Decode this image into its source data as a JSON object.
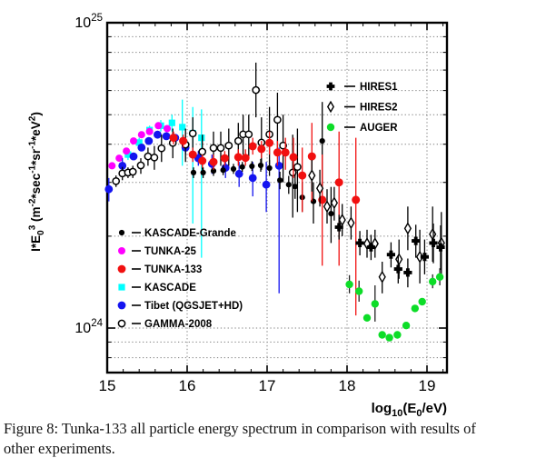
{
  "figure": {
    "caption_lines": [
      "Figure 8: Tunka-133 all particle energy spectrum in comparison with results of",
      "other experiments."
    ]
  },
  "chart_data": {
    "type": "scatter",
    "title": "",
    "xlabel_segments": [
      {
        "t": "log"
      },
      {
        "t": "10",
        "s": "sub"
      },
      {
        "t": "(E"
      },
      {
        "t": "0",
        "s": "sub"
      },
      {
        "t": "/eV)"
      }
    ],
    "ylabel_segments": [
      {
        "t": "I*E"
      },
      {
        "t": "0",
        "s": "sub"
      },
      {
        "t": "3",
        "s": "sup"
      },
      {
        "t": " (m"
      },
      {
        "t": "-2",
        "s": "sup"
      },
      {
        "t": "*sec"
      },
      {
        "t": "-1",
        "s": "sup"
      },
      {
        "t": "*sr"
      },
      {
        "t": "-1",
        "s": "sup"
      },
      {
        "t": "*eV"
      },
      {
        "t": "2",
        "s": "sup"
      },
      {
        "t": ")"
      }
    ],
    "xlim": [
      15,
      19.25
    ],
    "ylim_1e24": [
      0.715,
      10
    ],
    "x_major_ticks": [
      15,
      16,
      17,
      18,
      19
    ],
    "x_minor_step": 0.2,
    "x_gridlines": [
      16,
      17,
      18,
      19
    ],
    "y_gridlines_1e24": [
      0.8,
      0.9,
      1,
      2,
      3,
      4,
      5,
      6,
      7,
      8,
      9
    ],
    "y_tick_labels": [
      {
        "base": "10",
        "exp": "25",
        "value_1e24": 10
      },
      {
        "base": "10",
        "exp": "24",
        "value_1e24": 1
      }
    ],
    "grid": true,
    "units_note": "points are [log10(E0/eV), flux*1e-24, bar_low*1e-24, bar_high*1e-24] in I*E0^3 (m^-2 sec^-1 sr^-1 eV^2)",
    "series": [
      {
        "name": "KASCADE",
        "marker": "filled-square",
        "color": "#00ffff",
        "size": 3.6,
        "points": [
          [
            15.26,
            3.7,
            3.55,
            3.85
          ],
          [
            15.4,
            4.05,
            3.9,
            4.2
          ],
          [
            15.53,
            4.45,
            4.3,
            4.6
          ],
          [
            15.67,
            4.6,
            4.4,
            4.8
          ],
          [
            15.81,
            4.7,
            4.4,
            5.0
          ],
          [
            15.94,
            4.55,
            3.4,
            5.6
          ],
          [
            16.07,
            4.35,
            2.2,
            5.3
          ],
          [
            16.18,
            4.2,
            1.7,
            5.2
          ]
        ]
      },
      {
        "name": "TUNKA-25",
        "marker": "filled-circle",
        "color": "#ff00ff",
        "size": 4.0,
        "points": [
          [
            15.06,
            3.4,
            3.4,
            3.4
          ],
          [
            15.15,
            3.6,
            3.6,
            3.6
          ],
          [
            15.24,
            3.8,
            3.8,
            3.8
          ],
          [
            15.33,
            4.1,
            4.1,
            4.1
          ],
          [
            15.43,
            4.3,
            4.3,
            4.3
          ],
          [
            15.53,
            4.4,
            4.4,
            4.4
          ],
          [
            15.64,
            4.6,
            4.6,
            4.6
          ],
          [
            15.75,
            4.5,
            4.5,
            4.5
          ]
        ]
      },
      {
        "name": "Tibet (QGSJET+HD)",
        "marker": "filled-circle",
        "color": "#1414f0",
        "size": 4.4,
        "points": [
          [
            15.02,
            2.85,
            2.6,
            3.1
          ],
          [
            15.19,
            3.4,
            3.2,
            3.6
          ],
          [
            15.33,
            3.65,
            3.65,
            3.65
          ],
          [
            15.43,
            3.9,
            3.9,
            3.9
          ],
          [
            15.52,
            4.1,
            4.1,
            4.1
          ],
          [
            15.63,
            4.3,
            4.3,
            4.3
          ],
          [
            15.74,
            4.25,
            4.25,
            4.25
          ],
          [
            15.85,
            4.2,
            4.2,
            4.2
          ],
          [
            15.98,
            3.9,
            3.7,
            4.1
          ],
          [
            16.14,
            3.6,
            3.4,
            3.8
          ],
          [
            16.31,
            3.45,
            3.2,
            3.7
          ],
          [
            16.48,
            3.35,
            3.1,
            3.6
          ],
          [
            16.65,
            3.2,
            2.9,
            3.5
          ],
          [
            16.82,
            3.1,
            2.7,
            3.5
          ],
          [
            16.99,
            2.95,
            2.4,
            3.5
          ],
          [
            17.15,
            3.4,
            1.3,
            3.9
          ]
        ]
      },
      {
        "name": "KASCADE-Grande",
        "marker": "filled-circle",
        "color": "#000000",
        "size": 3.1,
        "points": [
          [
            16.08,
            3.23,
            3.1,
            3.36
          ],
          [
            16.2,
            3.23,
            3.1,
            3.36
          ],
          [
            16.33,
            3.27,
            3.15,
            3.4
          ],
          [
            16.45,
            3.29,
            3.17,
            3.42
          ],
          [
            16.58,
            3.32,
            3.2,
            3.45
          ],
          [
            16.69,
            3.37,
            3.25,
            3.5
          ],
          [
            16.81,
            3.39,
            3.27,
            3.52
          ],
          [
            16.92,
            3.41,
            3.25,
            3.58
          ],
          [
            17.03,
            3.34,
            3.15,
            3.55
          ],
          [
            17.16,
            3.05,
            2.85,
            3.25
          ],
          [
            17.27,
            2.95,
            2.75,
            3.15
          ],
          [
            17.35,
            2.91,
            2.65,
            3.2
          ],
          [
            17.44,
            2.68,
            2.4,
            3.0
          ],
          [
            17.58,
            2.6,
            2.2,
            3.0
          ],
          [
            17.69,
            4.1,
            2.9,
            5.5
          ],
          [
            17.8,
            2.37,
            1.9,
            2.9
          ]
        ]
      },
      {
        "name": "GAMMA-2008",
        "marker": "open-circle",
        "color": "#000000",
        "size": 3.6,
        "points": [
          [
            15.11,
            3.03,
            2.9,
            3.16
          ],
          [
            15.19,
            3.21,
            3.05,
            3.37
          ],
          [
            15.26,
            3.23,
            3.1,
            3.36
          ],
          [
            15.32,
            3.25,
            3.1,
            3.4
          ],
          [
            15.42,
            3.41,
            3.2,
            3.6
          ],
          [
            15.51,
            3.65,
            3.4,
            3.9
          ],
          [
            15.59,
            3.62,
            3.3,
            3.95
          ],
          [
            15.68,
            3.88,
            3.5,
            4.3
          ],
          [
            15.82,
            4.04,
            3.6,
            4.5
          ],
          [
            15.98,
            3.99,
            3.5,
            4.5
          ],
          [
            16.07,
            4.34,
            3.8,
            4.9
          ],
          [
            16.19,
            3.78,
            3.3,
            4.3
          ],
          [
            16.33,
            3.89,
            3.4,
            4.4
          ],
          [
            16.42,
            3.89,
            3.4,
            4.4
          ],
          [
            16.52,
            3.96,
            3.4,
            4.5
          ],
          [
            16.64,
            4.1,
            3.5,
            4.7
          ],
          [
            16.7,
            4.31,
            3.7,
            5.0
          ],
          [
            16.77,
            4.31,
            3.6,
            5.0
          ],
          [
            16.86,
            6.02,
            4.9,
            7.4
          ],
          [
            16.93,
            4.05,
            3.3,
            4.9
          ],
          [
            17.03,
            4.31,
            3.4,
            5.3
          ],
          [
            17.13,
            4.81,
            3.8,
            5.9
          ],
          [
            17.2,
            3.96,
            3.0,
            5.0
          ],
          [
            17.32,
            3.23,
            2.3,
            4.3
          ],
          [
            17.38,
            3.37,
            2.4,
            4.5
          ]
        ]
      },
      {
        "name": "TUNKA-133",
        "marker": "filled-circle",
        "color": "#f11010",
        "size": 4.5,
        "points": [
          [
            15.83,
            4.2,
            4.0,
            4.4
          ],
          [
            15.95,
            4.1,
            3.9,
            4.3
          ],
          [
            16.07,
            3.7,
            3.5,
            3.9
          ],
          [
            16.19,
            3.53,
            3.35,
            3.7
          ],
          [
            16.33,
            3.5,
            3.3,
            3.7
          ],
          [
            16.47,
            3.6,
            3.4,
            3.8
          ],
          [
            16.64,
            3.63,
            3.4,
            3.85
          ],
          [
            16.73,
            3.61,
            3.4,
            3.85
          ],
          [
            16.82,
            3.94,
            3.7,
            4.2
          ],
          [
            16.93,
            3.86,
            3.6,
            4.1
          ],
          [
            17.03,
            4.04,
            3.7,
            4.4
          ],
          [
            17.13,
            3.76,
            3.4,
            4.1
          ],
          [
            17.23,
            3.76,
            3.3,
            4.2
          ],
          [
            17.33,
            3.63,
            3.1,
            4.2
          ],
          [
            17.44,
            3.16,
            2.4,
            3.9
          ],
          [
            17.56,
            3.65,
            2.6,
            4.7
          ],
          [
            17.69,
            2.63,
            1.6,
            3.7
          ],
          [
            17.9,
            3.0,
            1.6,
            4.4
          ],
          [
            18.11,
            2.63,
            1.1,
            4.2
          ]
        ]
      },
      {
        "name": "HIRES2",
        "marker": "open-diamond",
        "color": "#000000",
        "size": 4.6,
        "points": [
          [
            17.56,
            3.16,
            2.8,
            3.55
          ],
          [
            17.66,
            2.87,
            2.5,
            3.3
          ],
          [
            17.75,
            2.5,
            2.2,
            2.85
          ],
          [
            17.84,
            2.57,
            2.25,
            2.9
          ],
          [
            17.94,
            2.26,
            2.0,
            2.55
          ],
          [
            18.05,
            2.21,
            1.95,
            2.5
          ],
          [
            18.25,
            1.89,
            1.7,
            2.1
          ],
          [
            18.35,
            1.89,
            1.7,
            2.1
          ],
          [
            18.44,
            1.47,
            1.3,
            1.65
          ],
          [
            18.65,
            1.68,
            1.45,
            1.95
          ],
          [
            18.76,
            2.12,
            1.8,
            2.5
          ],
          [
            18.91,
            1.71,
            1.4,
            2.1
          ],
          [
            19.07,
            2.03,
            1.65,
            2.5
          ],
          [
            19.18,
            1.9,
            1.5,
            2.4
          ]
        ]
      },
      {
        "name": "HIRES1",
        "marker": "bold-cross",
        "color": "#000000",
        "size": 4.6,
        "points": [
          [
            17.9,
            2.14,
            1.95,
            2.35
          ],
          [
            18.16,
            1.9,
            1.73,
            2.08
          ],
          [
            18.3,
            1.84,
            1.67,
            2.02
          ],
          [
            18.55,
            1.74,
            1.58,
            1.91
          ],
          [
            18.64,
            1.56,
            1.4,
            1.73
          ],
          [
            18.76,
            1.52,
            1.36,
            1.69
          ],
          [
            18.86,
            1.93,
            1.7,
            2.18
          ],
          [
            18.97,
            1.71,
            1.5,
            1.95
          ],
          [
            19.08,
            1.9,
            1.63,
            2.2
          ],
          [
            19.17,
            1.84,
            1.55,
            2.17
          ]
        ]
      },
      {
        "name": "AUGER",
        "marker": "filled-circle",
        "color": "#0ddd28",
        "bar_color": "#222222",
        "size": 4.2,
        "points": [
          [
            18.03,
            1.39,
            1.3,
            1.49
          ],
          [
            18.15,
            1.32,
            1.22,
            1.43
          ],
          [
            18.25,
            1.08,
            1.08,
            1.08
          ],
          [
            18.35,
            1.2,
            1.05,
            1.38
          ],
          [
            18.44,
            0.95,
            0.95,
            0.95
          ],
          [
            18.53,
            0.93,
            0.93,
            0.93
          ],
          [
            18.63,
            0.95,
            0.95,
            0.95
          ],
          [
            18.74,
            1.02,
            1.02,
            1.02
          ],
          [
            18.85,
            1.16,
            1.16,
            1.16
          ],
          [
            18.94,
            1.22,
            1.22,
            1.22
          ],
          [
            19.07,
            1.42,
            1.35,
            1.5
          ],
          [
            19.16,
            1.47,
            1.38,
            1.57
          ]
        ]
      }
    ],
    "legend_left": {
      "entries": [
        "KASCADE-Grande",
        "TUNKA-25",
        "TUNKA-133",
        "KASCADE",
        "Tibet (QGSJET+HD)",
        "GAMMA-2008"
      ]
    },
    "legend_right": {
      "entries": [
        "HIRES1",
        "HIRES2",
        "AUGER"
      ]
    }
  }
}
